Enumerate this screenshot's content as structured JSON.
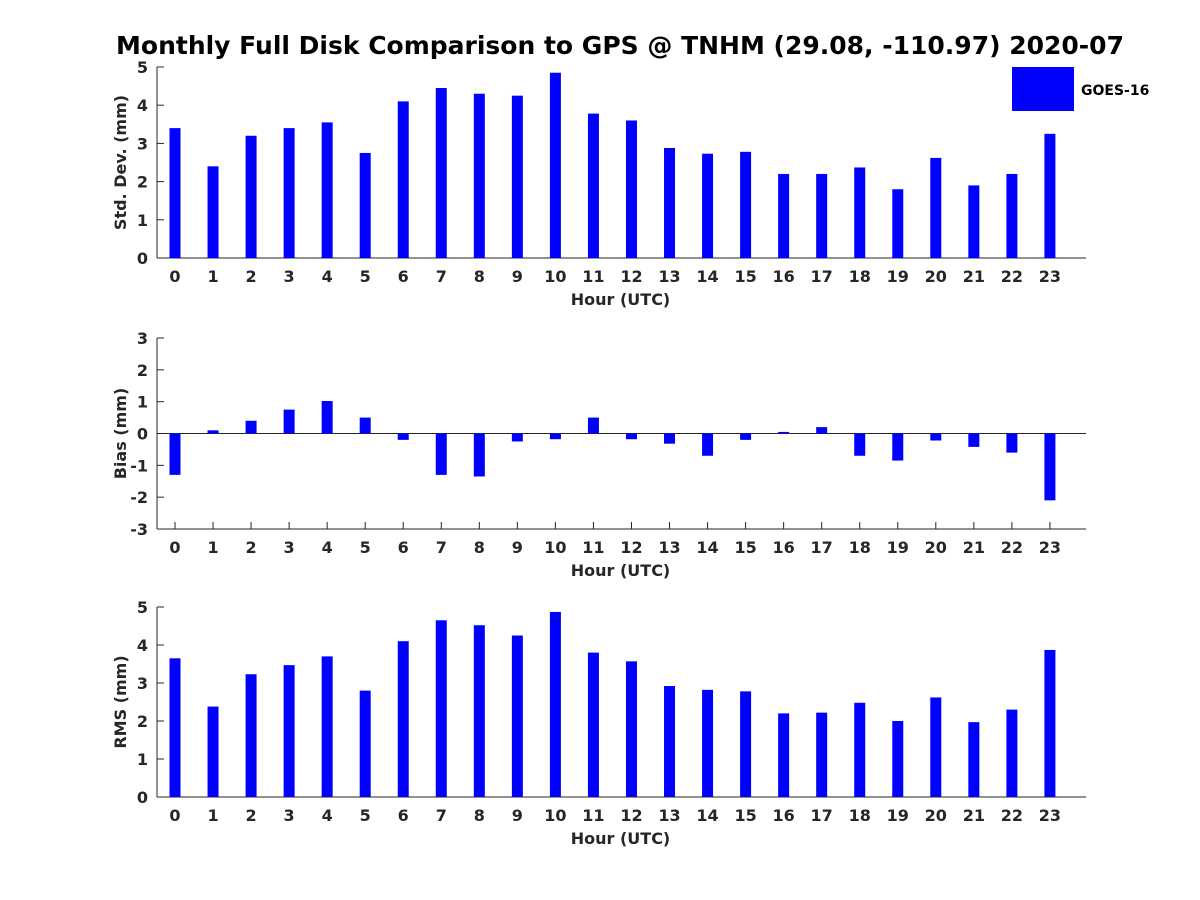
{
  "title": "Monthly Full Disk Comparison to GPS @ TNHM (29.08, -110.97) 2020-07",
  "colors": {
    "bar": "#0000ff",
    "axis": "#262626",
    "text": "#262626"
  },
  "legend": {
    "label": "GOES-16",
    "placement": "top-right"
  },
  "chart_data": [
    {
      "type": "bar",
      "xlabel": "Hour (UTC)",
      "ylabel": "Std. Dev. (mm)",
      "ylim": [
        0,
        5
      ],
      "yticks": [
        0,
        1,
        2,
        3,
        4,
        5
      ],
      "grid": false,
      "categories": [
        "0",
        "1",
        "2",
        "3",
        "4",
        "5",
        "6",
        "7",
        "8",
        "9",
        "10",
        "11",
        "12",
        "13",
        "14",
        "15",
        "16",
        "17",
        "18",
        "19",
        "20",
        "21",
        "22",
        "23"
      ],
      "series": [
        {
          "name": "GOES-16",
          "values": [
            3.4,
            2.4,
            3.2,
            3.4,
            3.55,
            2.75,
            4.1,
            4.45,
            4.3,
            4.25,
            4.85,
            3.78,
            3.6,
            2.88,
            2.73,
            2.78,
            2.2,
            2.2,
            2.37,
            1.8,
            2.62,
            1.9,
            2.2,
            3.25
          ]
        }
      ]
    },
    {
      "type": "bar",
      "xlabel": "Hour (UTC)",
      "ylabel": "Bias (mm)",
      "ylim": [
        -3,
        3
      ],
      "yticks": [
        -3,
        -2,
        -1,
        0,
        1,
        2,
        3
      ],
      "grid": false,
      "categories": [
        "0",
        "1",
        "2",
        "3",
        "4",
        "5",
        "6",
        "7",
        "8",
        "9",
        "10",
        "11",
        "12",
        "13",
        "14",
        "15",
        "16",
        "17",
        "18",
        "19",
        "20",
        "21",
        "22",
        "23"
      ],
      "series": [
        {
          "name": "GOES-16",
          "values": [
            -1.3,
            0.1,
            0.4,
            0.75,
            1.02,
            0.5,
            -0.2,
            -1.3,
            -1.35,
            -0.25,
            -0.18,
            0.5,
            -0.18,
            -0.32,
            -0.7,
            -0.2,
            0.05,
            0.2,
            -0.7,
            -0.85,
            -0.22,
            -0.42,
            -0.6,
            -2.1
          ]
        }
      ]
    },
    {
      "type": "bar",
      "xlabel": "Hour (UTC)",
      "ylabel": "RMS (mm)",
      "ylim": [
        0,
        5
      ],
      "yticks": [
        0,
        1,
        2,
        3,
        4,
        5
      ],
      "grid": false,
      "categories": [
        "0",
        "1",
        "2",
        "3",
        "4",
        "5",
        "6",
        "7",
        "8",
        "9",
        "10",
        "11",
        "12",
        "13",
        "14",
        "15",
        "16",
        "17",
        "18",
        "19",
        "20",
        "21",
        "22",
        "23"
      ],
      "series": [
        {
          "name": "GOES-16",
          "values": [
            3.65,
            2.38,
            3.23,
            3.47,
            3.7,
            2.8,
            4.1,
            4.65,
            4.52,
            4.25,
            4.87,
            3.8,
            3.57,
            2.92,
            2.82,
            2.78,
            2.2,
            2.22,
            2.48,
            2.0,
            2.62,
            1.97,
            2.3,
            3.87
          ]
        }
      ]
    }
  ]
}
